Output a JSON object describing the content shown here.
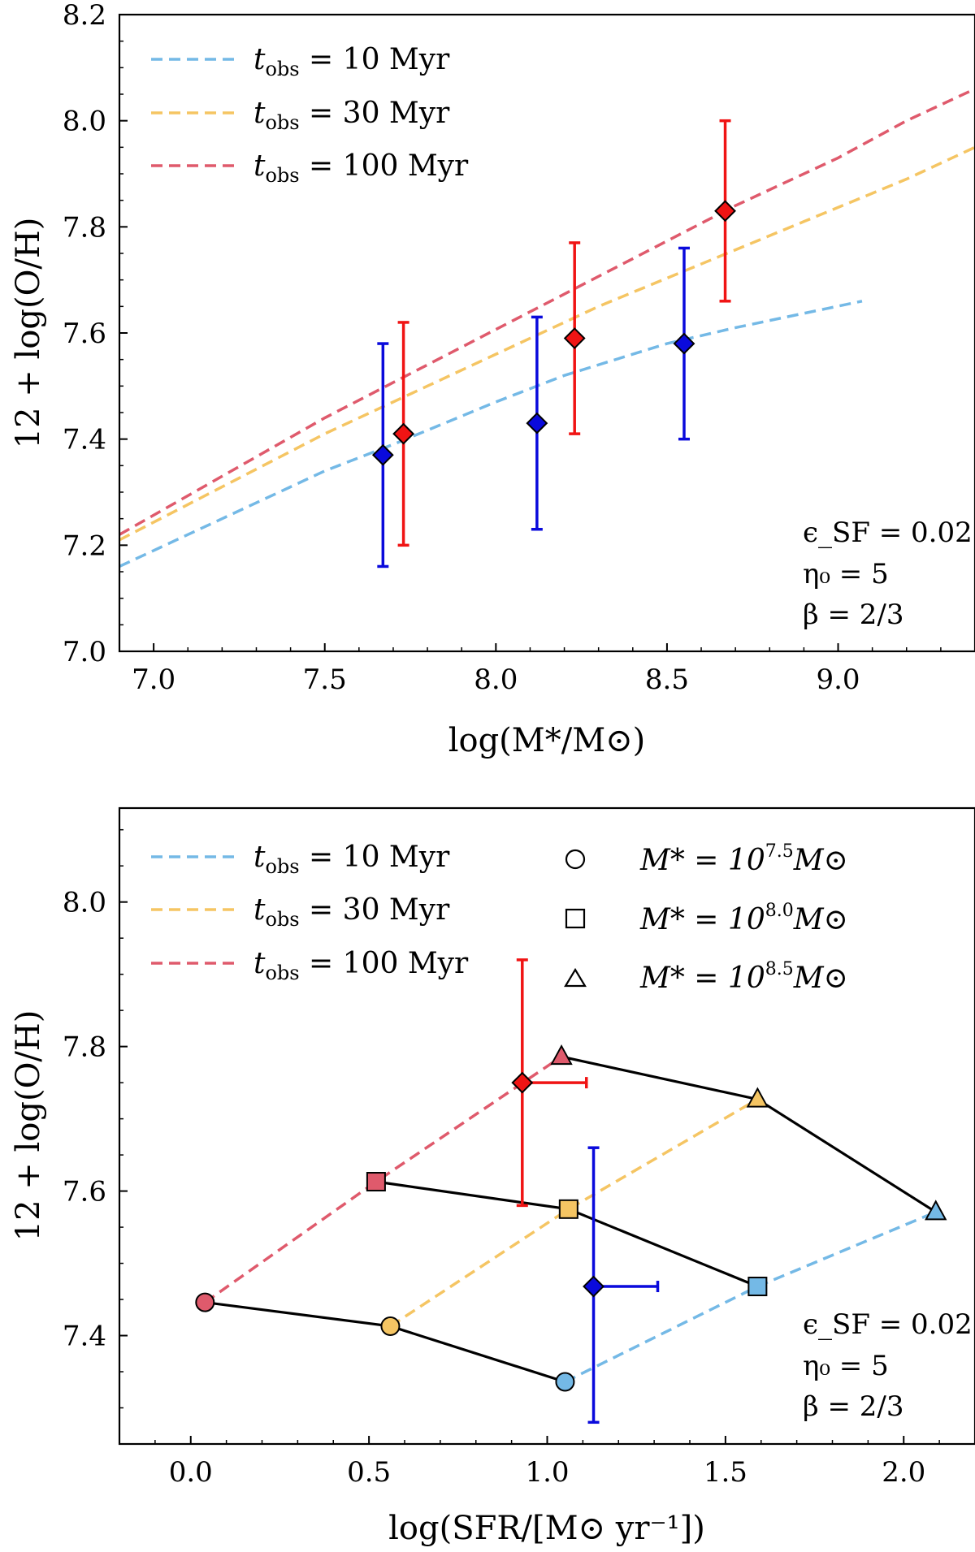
{
  "chart_data": [
    {
      "type": "line",
      "panel": "top",
      "xlabel": "log(M*/M⊙)",
      "ylabel": "12 + log(O/H)",
      "xlim": [
        6.9,
        9.4
      ],
      "ylim": [
        7.0,
        8.2
      ],
      "xticks": [
        7.0,
        7.5,
        8.0,
        8.5,
        9.0
      ],
      "xtick_labels": [
        "7.0",
        "7.5",
        "8.0",
        "8.5",
        "9.0"
      ],
      "yticks": [
        7.0,
        7.2,
        7.4,
        7.6,
        7.8,
        8.0,
        8.2
      ],
      "ytick_labels": [
        "7.0",
        "7.2",
        "7.4",
        "7.6",
        "7.8",
        "8.0",
        "8.2"
      ],
      "series": [
        {
          "name": "t_obs = 10 Myr",
          "label_var": "t",
          "label_sub": "obs",
          "label_rest": " = 10 Myr",
          "color": "#74b9e6",
          "x": [
            6.9,
            7.2,
            7.5,
            7.7,
            8.0,
            8.2,
            8.5,
            8.7,
            9.07
          ],
          "y": [
            7.16,
            7.25,
            7.34,
            7.39,
            7.47,
            7.52,
            7.58,
            7.61,
            7.66
          ]
        },
        {
          "name": "t_obs = 30 Myr",
          "label_var": "t",
          "label_sub": "obs",
          "label_rest": " = 30 Myr",
          "color": "#f5c563",
          "x": [
            6.9,
            7.2,
            7.5,
            7.8,
            8.0,
            8.3,
            8.6,
            8.9,
            9.2,
            9.4
          ],
          "y": [
            7.21,
            7.31,
            7.41,
            7.5,
            7.56,
            7.65,
            7.73,
            7.81,
            7.89,
            7.95
          ]
        },
        {
          "name": "t_obs = 100 Myr",
          "label_var": "t",
          "label_sub": "obs",
          "label_rest": " = 100 Myr",
          "color": "#df5a6c",
          "x": [
            6.9,
            7.2,
            7.5,
            7.8,
            8.1,
            8.4,
            8.7,
            9.0,
            9.2,
            9.4
          ],
          "y": [
            7.22,
            7.33,
            7.44,
            7.54,
            7.64,
            7.74,
            7.84,
            7.93,
            8.0,
            8.06
          ]
        }
      ],
      "points": [
        {
          "x": 7.67,
          "y": 7.37,
          "ylo": 7.16,
          "yhi": 7.58,
          "color": "#0a0adc"
        },
        {
          "x": 7.73,
          "y": 7.41,
          "ylo": 7.2,
          "yhi": 7.62,
          "color": "#f01414"
        },
        {
          "x": 8.12,
          "y": 7.43,
          "ylo": 7.23,
          "yhi": 7.63,
          "color": "#0a0adc"
        },
        {
          "x": 8.23,
          "y": 7.59,
          "ylo": 7.41,
          "yhi": 7.77,
          "color": "#f01414"
        },
        {
          "x": 8.55,
          "y": 7.58,
          "ylo": 7.4,
          "yhi": 7.76,
          "color": "#0a0adc"
        },
        {
          "x": 8.67,
          "y": 7.83,
          "ylo": 7.66,
          "yhi": 8.0,
          "color": "#f01414"
        }
      ],
      "annotation": [
        "ϵ_SF = 0.02",
        "η₀ = 5",
        "β = 2/3"
      ]
    },
    {
      "type": "line",
      "panel": "bottom",
      "xlabel": "log(SFR/[M⊙ yr⁻¹])",
      "ylabel": "12 + log(O/H)",
      "xlim": [
        -0.2,
        2.2
      ],
      "ylim": [
        7.25,
        8.13
      ],
      "xticks": [
        0.0,
        0.5,
        1.0,
        1.5,
        2.0
      ],
      "xtick_labels": [
        "0.0",
        "0.5",
        "1.0",
        "1.5",
        "2.0"
      ],
      "yticks": [
        7.4,
        7.6,
        7.8,
        8.0
      ],
      "ytick_labels": [
        "7.4",
        "7.6",
        "7.8",
        "8.0"
      ],
      "dashed_series": [
        {
          "name": "t_obs = 10 Myr",
          "label_var": "t",
          "label_sub": "obs",
          "label_rest": " = 10 Myr",
          "color": "#74b9e6",
          "x": [
            1.05,
            1.59,
            2.09
          ],
          "y": [
            7.336,
            7.468,
            7.571
          ]
        },
        {
          "name": "t_obs = 30 Myr",
          "label_var": "t",
          "label_sub": "obs",
          "label_rest": " = 30 Myr",
          "color": "#f5c563",
          "x": [
            0.56,
            1.06,
            1.59
          ],
          "y": [
            7.413,
            7.575,
            7.727
          ]
        },
        {
          "name": "t_obs = 100 Myr",
          "label_var": "t",
          "label_sub": "obs",
          "label_rest": " = 100 Myr",
          "color": "#df5a6c",
          "x": [
            0.04,
            0.52,
            1.04
          ],
          "y": [
            7.446,
            7.613,
            7.786
          ]
        }
      ],
      "mass_tracks": [
        {
          "name": "M* = 10^7.5 M⊙",
          "label_base": "M* = 10",
          "label_exp": "7.5",
          "label_tail": "M⊙",
          "marker": "circle",
          "points": [
            {
              "x": 0.04,
              "y": 7.446,
              "color": "#df5a6c"
            },
            {
              "x": 0.56,
              "y": 7.413,
              "color": "#f5c563"
            },
            {
              "x": 1.05,
              "y": 7.336,
              "color": "#74b9e6"
            }
          ]
        },
        {
          "name": "M* = 10^8.0 M⊙",
          "label_base": "M* = 10",
          "label_exp": "8.0",
          "label_tail": "M⊙",
          "marker": "square",
          "points": [
            {
              "x": 0.52,
              "y": 7.613,
              "color": "#df5a6c"
            },
            {
              "x": 1.06,
              "y": 7.575,
              "color": "#f5c563"
            },
            {
              "x": 1.59,
              "y": 7.468,
              "color": "#74b9e6"
            }
          ]
        },
        {
          "name": "M* = 10^8.5 M⊙",
          "label_base": "M* = 10",
          "label_exp": "8.5",
          "label_tail": "M⊙",
          "marker": "triangle",
          "points": [
            {
              "x": 1.04,
              "y": 7.786,
              "color": "#df5a6c"
            },
            {
              "x": 1.59,
              "y": 7.727,
              "color": "#f5c563"
            },
            {
              "x": 2.09,
              "y": 7.571,
              "color": "#74b9e6"
            }
          ]
        }
      ],
      "points": [
        {
          "x": 0.93,
          "y": 7.75,
          "ylo": 7.58,
          "yhi": 7.92,
          "xlo": 0.93,
          "xhi": 1.11,
          "color": "#f01414"
        },
        {
          "x": 1.13,
          "y": 7.468,
          "ylo": 7.28,
          "yhi": 7.66,
          "xlo": 1.13,
          "xhi": 1.31,
          "color": "#0a0adc"
        }
      ],
      "annotation": [
        "ϵ_SF = 0.02",
        "η₀ = 5",
        "β = 2/3"
      ]
    }
  ]
}
